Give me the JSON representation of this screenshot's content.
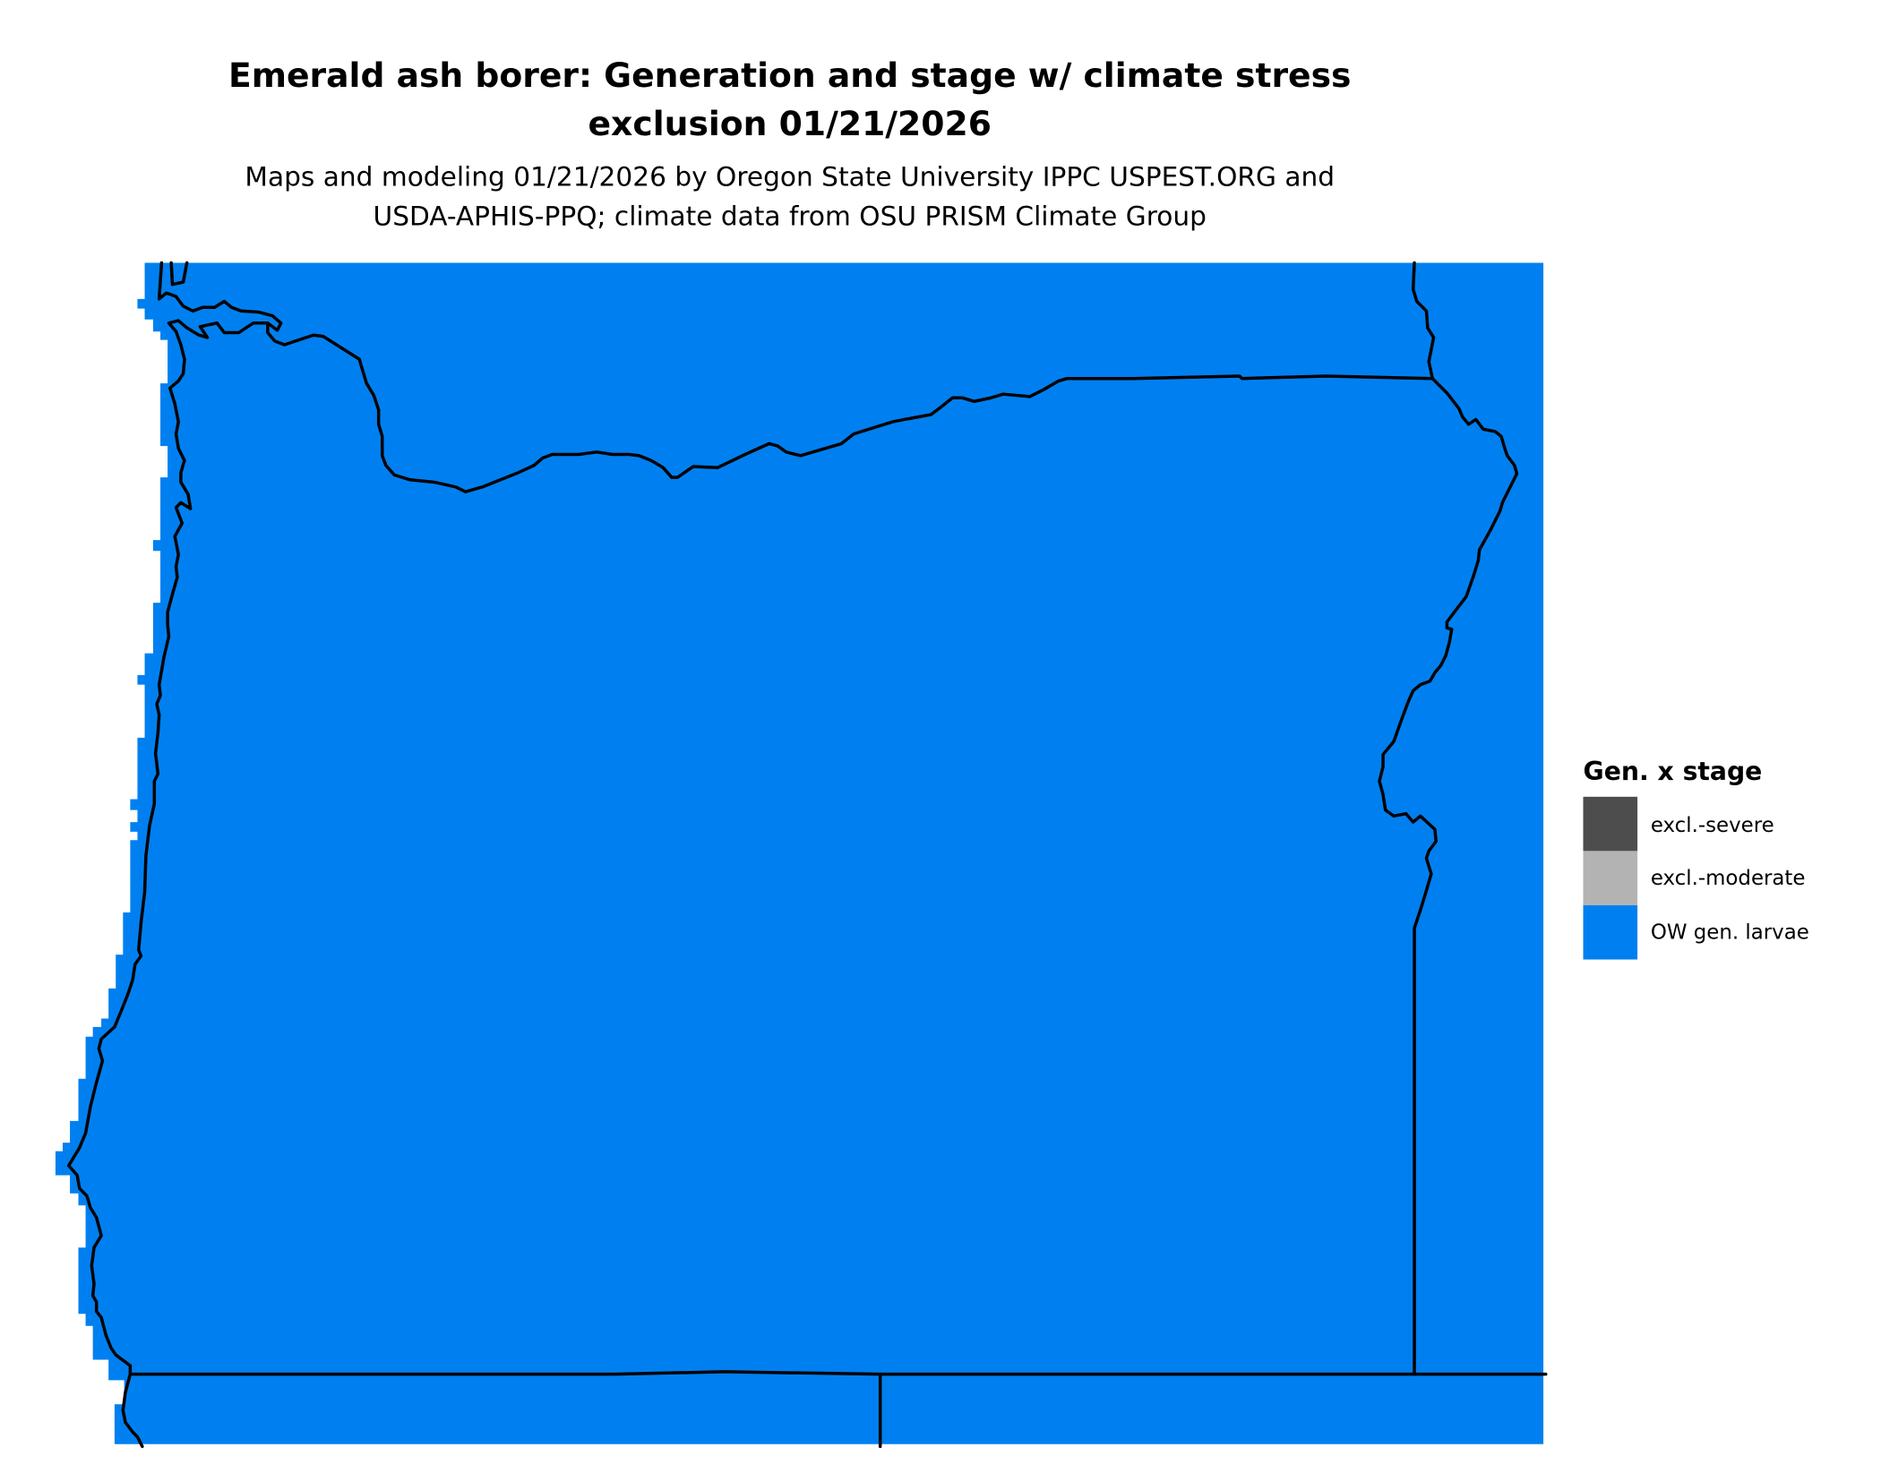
{
  "title": {
    "line1": "Emerald ash borer: Generation and stage w/ climate stress",
    "line2": "exclusion 01/21/2026"
  },
  "subtitle": {
    "line1": "Maps and modeling 01/21/2026 by Oregon State University IPPC USPEST.ORG and",
    "line2": "USDA-APHIS-PPQ; climate data from OSU PRISM Climate Group"
  },
  "legend": {
    "title": "Gen. x stage",
    "items": [
      {
        "label": "excl.-severe",
        "color": "#4d4d4d"
      },
      {
        "label": "excl.-moderate",
        "color": "#b3b3b3"
      },
      {
        "label": "OW gen. larvae",
        "color": "#0080f0"
      }
    ]
  },
  "map": {
    "region_fill_color": "#0080f0",
    "region_category": "OW gen. larvae",
    "border_color": "#000000"
  }
}
